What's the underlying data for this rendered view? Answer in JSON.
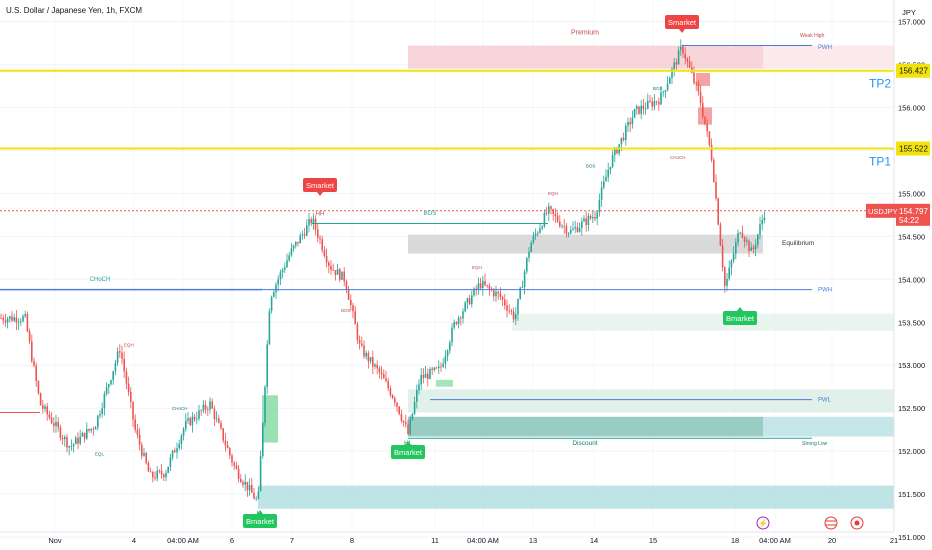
{
  "header": {
    "symbol_title": "U.S. Dollar / Japanese Yen, 1h, FXCM"
  },
  "currency_label": "JPY",
  "colors": {
    "up": "#26a69a",
    "down": "#ef5350",
    "tp": "#f2e30c",
    "blue": "#2962ff",
    "green_badge": "#22c55e",
    "red_badge": "#ef4444",
    "axis_text": "#131722"
  },
  "chart_data": {
    "type": "candlestick",
    "title": "U.S. Dollar / Japanese Yen, 1h, FXCM",
    "ylim": [
      150.85,
      157.25
    ],
    "y_ticks": [
      157.0,
      156.5,
      156.0,
      155.5,
      155.0,
      154.5,
      154.0,
      153.5,
      153.0,
      152.5,
      152.0,
      151.5,
      151.0
    ],
    "x_tick_labels": [
      "Nov",
      "4",
      "04:00 AM",
      "6",
      "7",
      "8",
      "11",
      "04:00 AM",
      "13",
      "14",
      "15",
      "18",
      "04:00 AM",
      "20",
      "21"
    ],
    "last_price": {
      "symbol": "USDJPY",
      "value": "154.797",
      "countdown": "54:22"
    },
    "levels": [
      {
        "name": "TP2",
        "value": 156.427,
        "tag": "156.427"
      },
      {
        "name": "TP1",
        "value": 155.522,
        "tag": "155.522"
      }
    ],
    "zones": [
      {
        "label": "Premium",
        "from": 156.45,
        "to": 156.7,
        "kind": "premium"
      },
      {
        "label": "Equilibrium",
        "from": 154.3,
        "to": 154.5,
        "kind": "equilibrium"
      },
      {
        "label": "Discount",
        "from": 152.15,
        "to": 152.4,
        "kind": "discount"
      }
    ],
    "structure_labels": [
      "BOS",
      "CHoCH",
      "PWH",
      "PWL",
      "Strong Low",
      "Weak High",
      "EQH",
      "EQL",
      "HH",
      "HL",
      "LL"
    ],
    "badges": [
      {
        "text": "Smarket",
        "kind": "bearish",
        "at": "top"
      },
      {
        "text": "Smarket",
        "kind": "bearish",
        "at": "HH"
      },
      {
        "text": "Bmarket",
        "kind": "bullish",
        "at": "HL"
      },
      {
        "text": "Bmarket",
        "kind": "bullish",
        "at": "LL"
      },
      {
        "text": "Bmarket",
        "kind": "bullish",
        "at": "last-low"
      }
    ],
    "anchors": [
      {
        "x": 0,
        "y": 153.55
      },
      {
        "x": 25,
        "y": 153.55
      },
      {
        "x": 40,
        "y": 152.55
      },
      {
        "x": 70,
        "y": 152.05
      },
      {
        "x": 95,
        "y": 152.3
      },
      {
        "x": 120,
        "y": 153.2
      },
      {
        "x": 135,
        "y": 152.25
      },
      {
        "x": 150,
        "y": 151.7
      },
      {
        "x": 165,
        "y": 151.75
      },
      {
        "x": 185,
        "y": 152.3
      },
      {
        "x": 210,
        "y": 152.55
      },
      {
        "x": 235,
        "y": 151.8
      },
      {
        "x": 258,
        "y": 151.4
      },
      {
        "x": 262,
        "y": 152.2
      },
      {
        "x": 270,
        "y": 153.8
      },
      {
        "x": 290,
        "y": 154.3
      },
      {
        "x": 312,
        "y": 154.7
      },
      {
        "x": 330,
        "y": 154.15
      },
      {
        "x": 345,
        "y": 154.0
      },
      {
        "x": 360,
        "y": 153.2
      },
      {
        "x": 380,
        "y": 152.9
      },
      {
        "x": 395,
        "y": 152.6
      },
      {
        "x": 408,
        "y": 152.2
      },
      {
        "x": 420,
        "y": 152.85
      },
      {
        "x": 440,
        "y": 152.95
      },
      {
        "x": 455,
        "y": 153.5
      },
      {
        "x": 480,
        "y": 153.95
      },
      {
        "x": 500,
        "y": 153.8
      },
      {
        "x": 515,
        "y": 153.55
      },
      {
        "x": 530,
        "y": 154.4
      },
      {
        "x": 548,
        "y": 154.8
      },
      {
        "x": 570,
        "y": 154.55
      },
      {
        "x": 595,
        "y": 154.75
      },
      {
        "x": 610,
        "y": 155.35
      },
      {
        "x": 635,
        "y": 155.95
      },
      {
        "x": 660,
        "y": 156.1
      },
      {
        "x": 682,
        "y": 156.7
      },
      {
        "x": 700,
        "y": 156.1
      },
      {
        "x": 712,
        "y": 155.4
      },
      {
        "x": 725,
        "y": 153.9
      },
      {
        "x": 740,
        "y": 154.6
      },
      {
        "x": 752,
        "y": 154.3
      },
      {
        "x": 765,
        "y": 154.8
      }
    ]
  }
}
